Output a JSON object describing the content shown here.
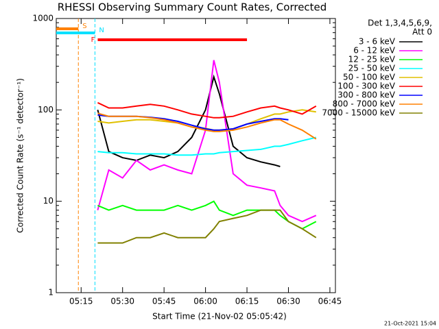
{
  "chart_data": {
    "type": "line",
    "title": "RHESSI Observing Summary Count Rates, Corrected",
    "xlabel": "Start Time (21-Nov-02 05:05:42)",
    "ylabel": "Corrected Count Rate (s⁻¹ detector⁻¹)",
    "legend_title": [
      "Det 1,3,4,5,6,9,",
      "Att 0"
    ],
    "footer": "21-Oct-2021 15:04",
    "log_y": true,
    "legend": "right",
    "xlim": [
      "05:06",
      "06:47"
    ],
    "xticks": [
      "05:15",
      "05:30",
      "05:45",
      "06:00",
      "06:15",
      "06:30",
      "06:45"
    ],
    "ylim": [
      1,
      1000
    ],
    "yticks": [
      1,
      10,
      100,
      1000
    ],
    "flags": [
      {
        "label": "S",
        "color": "#ff8000",
        "start": "05:06",
        "end": "05:14",
        "dashed": true
      },
      {
        "label": "N",
        "color": "#00e0ff",
        "start": "05:06",
        "end": "05:20",
        "dashed": true
      },
      {
        "label": "F",
        "color": "#ff0000",
        "start": "05:21",
        "end": "06:15",
        "dashed": false
      }
    ],
    "x": [
      "05:21",
      "05:25",
      "05:30",
      "05:35",
      "05:40",
      "05:45",
      "05:50",
      "05:55",
      "06:00",
      "06:03",
      "06:05",
      "06:10",
      "06:15",
      "06:20",
      "06:25",
      "06:27",
      "06:30",
      "06:35",
      "06:40"
    ],
    "series": [
      {
        "name": "3 - 6 keV",
        "color": "#000000",
        "values": [
          100,
          35,
          30,
          28,
          32,
          30,
          35,
          50,
          100,
          230,
          150,
          40,
          30,
          27,
          25,
          24,
          null,
          null,
          null
        ]
      },
      {
        "name": "6 - 12 keV",
        "color": "#ff00ff",
        "values": [
          8,
          22,
          18,
          28,
          22,
          25,
          22,
          20,
          60,
          350,
          200,
          20,
          15,
          14,
          13,
          9,
          7,
          6,
          7
        ]
      },
      {
        "name": "12 - 25 keV",
        "color": "#00ff00",
        "values": [
          9,
          8,
          9,
          8,
          8,
          8,
          9,
          8,
          9,
          10,
          8,
          7,
          8,
          8,
          8,
          7,
          6,
          5,
          6
        ]
      },
      {
        "name": "25 - 50 keV",
        "color": "#00ffff",
        "values": [
          35,
          34,
          34,
          33,
          33,
          33,
          32,
          32,
          33,
          33,
          34,
          35,
          36,
          37,
          40,
          40,
          42,
          46,
          50
        ]
      },
      {
        "name": "50 - 100 keV",
        "color": "#e0c000",
        "values": [
          75,
          72,
          75,
          78,
          78,
          75,
          72,
          65,
          63,
          60,
          60,
          62,
          70,
          80,
          90,
          90,
          95,
          100,
          95
        ]
      },
      {
        "name": "100 - 300 keV",
        "color": "#ff0000",
        "values": [
          120,
          105,
          105,
          110,
          115,
          110,
          100,
          90,
          85,
          82,
          82,
          85,
          95,
          105,
          110,
          105,
          100,
          90,
          110
        ]
      },
      {
        "name": "300 - 800 keV",
        "color": "#0000ff",
        "values": [
          88,
          85,
          85,
          85,
          83,
          80,
          75,
          68,
          62,
          60,
          60,
          62,
          70,
          75,
          80,
          80,
          78,
          null,
          null
        ]
      },
      {
        "name": "800 - 7000 keV",
        "color": "#ff8000",
        "values": [
          92,
          85,
          85,
          85,
          82,
          78,
          72,
          65,
          60,
          58,
          58,
          60,
          65,
          72,
          78,
          78,
          70,
          60,
          48
        ]
      },
      {
        "name": "7000 - 15000 keV",
        "color": "#808000",
        "values": [
          3.5,
          3.5,
          3.5,
          4,
          4,
          4.5,
          4,
          4,
          4,
          5,
          6,
          6.5,
          7,
          8,
          8,
          8,
          6,
          5,
          4
        ]
      }
    ]
  }
}
